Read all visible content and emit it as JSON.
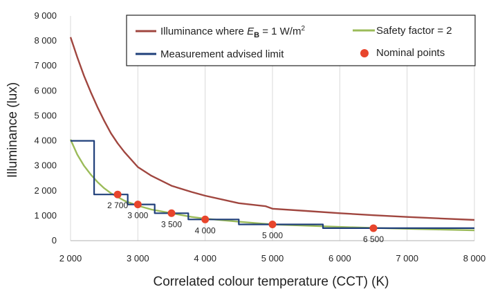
{
  "chart_data": {
    "type": "line",
    "xlabel": "Correlated colour temperature (CCT) (K)",
    "ylabel": "Illuminance (lux)",
    "xlim": [
      2000,
      8000
    ],
    "ylim": [
      0,
      9000
    ],
    "x_ticks": [
      2000,
      3000,
      4000,
      5000,
      6000,
      7000,
      8000
    ],
    "x_tick_labels": [
      "2 000",
      "3 000",
      "4 000",
      "5 000",
      "6 000",
      "7 000",
      "8 000"
    ],
    "y_ticks": [
      0,
      1000,
      2000,
      3000,
      4000,
      5000,
      6000,
      7000,
      8000,
      9000
    ],
    "y_tick_labels": [
      "0",
      "1 000",
      "2 000",
      "3 000",
      "4 000",
      "5 000",
      "6 000",
      "7 000",
      "8 000",
      "9 000"
    ],
    "grid": "vertical",
    "legend_position": "top-right",
    "legend": [
      {
        "label_pre": "Illuminance where ",
        "label_e": "E",
        "label_sub": "B",
        "label_post": " = 1 W/m",
        "label_sup": "2"
      },
      {
        "label": "Safety factor = 2"
      },
      {
        "label": "Measurement advised limit"
      },
      {
        "label": "Nominal points"
      }
    ],
    "series": [
      {
        "key": "illuminance",
        "color": "#a0463f",
        "style": "line",
        "x": [
          2000,
          2100,
          2200,
          2300,
          2400,
          2500,
          2600,
          2700,
          2800,
          3000,
          3200,
          3500,
          3800,
          4000,
          4500,
          4900,
          4950,
          5000,
          5500,
          6000,
          6500,
          7000,
          7500,
          8000
        ],
        "y": [
          8150,
          7350,
          6600,
          5950,
          5350,
          4800,
          4300,
          3900,
          3550,
          2950,
          2600,
          2200,
          1950,
          1800,
          1500,
          1380,
          1330,
          1280,
          1190,
          1100,
          1020,
          950,
          890,
          830
        ]
      },
      {
        "key": "safety",
        "color": "#9bbb59",
        "style": "line",
        "x": [
          2000,
          2100,
          2200,
          2300,
          2400,
          2500,
          2600,
          2700,
          2800,
          3000,
          3200,
          3500,
          3800,
          4000,
          4500,
          5000,
          5500,
          6000,
          6500,
          7000,
          7500,
          8000
        ],
        "y": [
          4050,
          3450,
          3000,
          2650,
          2350,
          2100,
          1900,
          1750,
          1600,
          1400,
          1250,
          1100,
          950,
          880,
          760,
          650,
          600,
          550,
          510,
          475,
          445,
          415
        ]
      },
      {
        "key": "limit",
        "color": "#1f3f7a",
        "style": "step",
        "x": [
          2000,
          2350,
          2350,
          2850,
          2850,
          3250,
          3250,
          3750,
          3750,
          4500,
          4500,
          5750,
          5750,
          8000
        ],
        "y": [
          4000,
          4000,
          1850,
          1850,
          1450,
          1450,
          1100,
          1100,
          850,
          850,
          650,
          650,
          500,
          500
        ]
      }
    ],
    "nominal_points": {
      "color": "#e8452c",
      "x": [
        2700,
        3000,
        3500,
        4000,
        5000,
        6500
      ],
      "y": [
        1850,
        1450,
        1100,
        850,
        650,
        500
      ],
      "labels": [
        "2 700",
        "3 000",
        "3 500",
        "4 000",
        "5 000",
        "6 500"
      ]
    }
  }
}
